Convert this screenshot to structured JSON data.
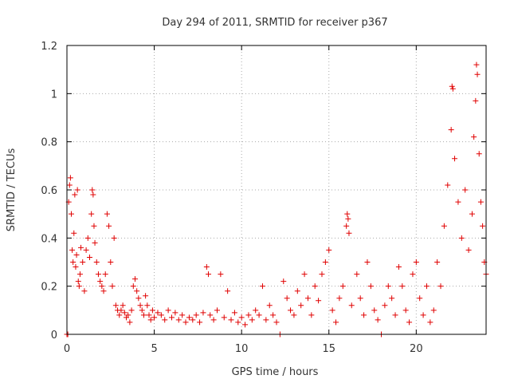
{
  "chart_data": {
    "type": "scatter",
    "title": "Day 294 of 2011, SRMTID for receiver p367",
    "xlabel": "GPS time / hours",
    "ylabel": "SRMTID / TECUs",
    "xlim": [
      0,
      24
    ],
    "ylim": [
      0,
      1.2
    ],
    "grid": true,
    "marker": "+",
    "color": "#e00000",
    "x_ticks": [
      0,
      5,
      10,
      15,
      20
    ],
    "x_tick_labels": [
      "0",
      "5",
      "10",
      "15",
      "20"
    ],
    "y_ticks": [
      0,
      0.2,
      0.4,
      0.6,
      0.8,
      1.0,
      1.2
    ],
    "y_tick_labels": [
      "0",
      "0.2",
      "0.4",
      "0.6",
      "0.8",
      "1",
      "1.2"
    ],
    "series": [
      {
        "name": "SRMTID",
        "points": [
          [
            0.0,
            0.0
          ],
          [
            0.05,
            0.0
          ],
          [
            0.1,
            0.55
          ],
          [
            0.15,
            0.62
          ],
          [
            0.2,
            0.65
          ],
          [
            0.25,
            0.5
          ],
          [
            0.3,
            0.35
          ],
          [
            0.35,
            0.3
          ],
          [
            0.4,
            0.42
          ],
          [
            0.45,
            0.58
          ],
          [
            0.5,
            0.28
          ],
          [
            0.55,
            0.33
          ],
          [
            0.6,
            0.6
          ],
          [
            0.65,
            0.22
          ],
          [
            0.7,
            0.2
          ],
          [
            0.75,
            0.25
          ],
          [
            0.8,
            0.36
          ],
          [
            0.9,
            0.3
          ],
          [
            1.0,
            0.18
          ],
          [
            1.1,
            0.35
          ],
          [
            1.2,
            0.4
          ],
          [
            1.3,
            0.32
          ],
          [
            1.4,
            0.5
          ],
          [
            1.45,
            0.6
          ],
          [
            1.5,
            0.58
          ],
          [
            1.55,
            0.45
          ],
          [
            1.6,
            0.38
          ],
          [
            1.7,
            0.3
          ],
          [
            1.8,
            0.25
          ],
          [
            1.9,
            0.22
          ],
          [
            2.0,
            0.2
          ],
          [
            2.1,
            0.18
          ],
          [
            2.2,
            0.25
          ],
          [
            2.3,
            0.5
          ],
          [
            2.4,
            0.45
          ],
          [
            2.5,
            0.3
          ],
          [
            2.6,
            0.2
          ],
          [
            2.7,
            0.4
          ],
          [
            2.8,
            0.12
          ],
          [
            2.9,
            0.1
          ],
          [
            3.0,
            0.08
          ],
          [
            3.1,
            0.1
          ],
          [
            3.2,
            0.12
          ],
          [
            3.3,
            0.09
          ],
          [
            3.4,
            0.07
          ],
          [
            3.5,
            0.08
          ],
          [
            3.6,
            0.05
          ],
          [
            3.7,
            0.1
          ],
          [
            3.8,
            0.2
          ],
          [
            3.9,
            0.23
          ],
          [
            4.0,
            0.18
          ],
          [
            4.1,
            0.15
          ],
          [
            4.2,
            0.12
          ],
          [
            4.3,
            0.1
          ],
          [
            4.4,
            0.08
          ],
          [
            4.5,
            0.16
          ],
          [
            4.6,
            0.12
          ],
          [
            4.7,
            0.08
          ],
          [
            4.8,
            0.06
          ],
          [
            4.9,
            0.1
          ],
          [
            5.0,
            0.07
          ],
          [
            5.2,
            0.09
          ],
          [
            5.4,
            0.08
          ],
          [
            5.6,
            0.06
          ],
          [
            5.8,
            0.1
          ],
          [
            6.0,
            0.07
          ],
          [
            6.2,
            0.09
          ],
          [
            6.4,
            0.06
          ],
          [
            6.6,
            0.08
          ],
          [
            6.8,
            0.05
          ],
          [
            7.0,
            0.07
          ],
          [
            7.2,
            0.06
          ],
          [
            7.4,
            0.08
          ],
          [
            7.6,
            0.05
          ],
          [
            7.8,
            0.09
          ],
          [
            8.0,
            0.28
          ],
          [
            8.1,
            0.25
          ],
          [
            8.2,
            0.08
          ],
          [
            8.4,
            0.06
          ],
          [
            8.6,
            0.1
          ],
          [
            8.8,
            0.25
          ],
          [
            9.0,
            0.07
          ],
          [
            9.2,
            0.18
          ],
          [
            9.4,
            0.06
          ],
          [
            9.6,
            0.09
          ],
          [
            9.8,
            0.05
          ],
          [
            10.0,
            0.07
          ],
          [
            10.2,
            0.04
          ],
          [
            10.4,
            0.08
          ],
          [
            10.6,
            0.06
          ],
          [
            10.8,
            0.1
          ],
          [
            11.0,
            0.08
          ],
          [
            11.2,
            0.2
          ],
          [
            11.4,
            0.06
          ],
          [
            11.6,
            0.12
          ],
          [
            11.8,
            0.08
          ],
          [
            12.0,
            0.05
          ],
          [
            12.2,
            0.0
          ],
          [
            12.4,
            0.22
          ],
          [
            12.6,
            0.15
          ],
          [
            12.8,
            0.1
          ],
          [
            13.0,
            0.08
          ],
          [
            13.2,
            0.18
          ],
          [
            13.4,
            0.12
          ],
          [
            13.6,
            0.25
          ],
          [
            13.8,
            0.15
          ],
          [
            14.0,
            0.08
          ],
          [
            14.2,
            0.2
          ],
          [
            14.4,
            0.14
          ],
          [
            14.6,
            0.25
          ],
          [
            14.8,
            0.3
          ],
          [
            15.0,
            0.35
          ],
          [
            15.2,
            0.1
          ],
          [
            15.4,
            0.05
          ],
          [
            15.6,
            0.15
          ],
          [
            15.8,
            0.2
          ],
          [
            16.0,
            0.45
          ],
          [
            16.05,
            0.5
          ],
          [
            16.1,
            0.48
          ],
          [
            16.15,
            0.42
          ],
          [
            16.3,
            0.12
          ],
          [
            16.6,
            0.25
          ],
          [
            16.8,
            0.15
          ],
          [
            17.0,
            0.08
          ],
          [
            17.2,
            0.3
          ],
          [
            17.4,
            0.2
          ],
          [
            17.6,
            0.1
          ],
          [
            17.8,
            0.06
          ],
          [
            18.0,
            0.0
          ],
          [
            18.2,
            0.12
          ],
          [
            18.4,
            0.2
          ],
          [
            18.6,
            0.15
          ],
          [
            18.8,
            0.08
          ],
          [
            19.0,
            0.28
          ],
          [
            19.2,
            0.2
          ],
          [
            19.4,
            0.1
          ],
          [
            19.6,
            0.05
          ],
          [
            19.8,
            0.25
          ],
          [
            20.0,
            0.3
          ],
          [
            20.2,
            0.15
          ],
          [
            20.4,
            0.08
          ],
          [
            20.6,
            0.2
          ],
          [
            20.8,
            0.05
          ],
          [
            21.0,
            0.1
          ],
          [
            21.2,
            0.3
          ],
          [
            21.4,
            0.2
          ],
          [
            21.6,
            0.45
          ],
          [
            21.8,
            0.62
          ],
          [
            22.0,
            0.85
          ],
          [
            22.05,
            1.03
          ],
          [
            22.1,
            1.02
          ],
          [
            22.2,
            0.73
          ],
          [
            22.4,
            0.55
          ],
          [
            22.6,
            0.4
          ],
          [
            22.8,
            0.6
          ],
          [
            23.0,
            0.35
          ],
          [
            23.2,
            0.5
          ],
          [
            23.3,
            0.82
          ],
          [
            23.4,
            0.97
          ],
          [
            23.45,
            1.12
          ],
          [
            23.5,
            1.08
          ],
          [
            23.6,
            0.75
          ],
          [
            23.7,
            0.55
          ],
          [
            23.8,
            0.45
          ],
          [
            23.9,
            0.3
          ],
          [
            24.0,
            0.25
          ]
        ]
      }
    ]
  }
}
